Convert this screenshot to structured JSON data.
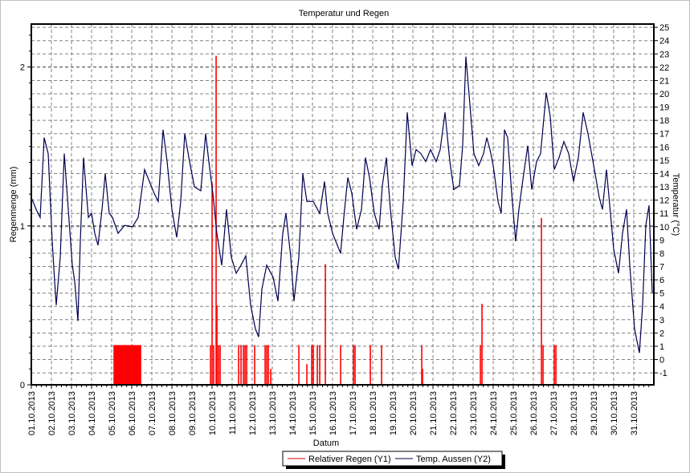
{
  "chart_data": {
    "type": "bar+line",
    "title": "Temperatur und Regen",
    "xlabel": "Datum",
    "ylabel": "Regenmenge (mm)",
    "y2label": "Temperatur (°C)",
    "x_tick_labels": [
      "01.10.2013",
      "02.10.2013",
      "03.10.2013",
      "04.10.2013",
      "05.10.2013",
      "06.10.2013",
      "07.10.2013",
      "08.10.2013",
      "09.10.2013",
      "10.10.2013",
      "11.10.2013",
      "12.10.2013",
      "13.10.2013",
      "14.10.2013",
      "15.10.2013",
      "16.10.2013",
      "17.10.2013",
      "18.10.2013",
      "19.10.2013",
      "20.10.2013",
      "21.10.2013",
      "22.10.2013",
      "23.10.2013",
      "24.10.2013",
      "25.10.2013",
      "26.10.2013",
      "27.10.2013",
      "28.10.2013",
      "29.10.2013",
      "30.10.2013",
      "31.10.2013"
    ],
    "xlim_days": [
      0,
      31
    ],
    "ylim": [
      0,
      2.27
    ],
    "y_ticks": [
      0,
      1,
      2
    ],
    "y2lim": [
      -1.9,
      25.25
    ],
    "y2_ticks": [
      -1,
      0,
      1,
      2,
      3,
      4,
      5,
      6,
      7,
      8,
      9,
      10,
      11,
      12,
      13,
      14,
      15,
      16,
      17,
      18,
      19,
      20,
      21,
      22,
      23,
      24,
      25
    ],
    "grid": true,
    "legend_position": "bottom-center",
    "series": [
      {
        "name": "Relativer Regen (Y1)",
        "axis": "y1",
        "kind": "bar",
        "color": "#ff0000",
        "points": [
          [
            4.12,
            0.25
          ],
          [
            4.16,
            0.25
          ],
          [
            4.2,
            0.25
          ],
          [
            4.24,
            0.25
          ],
          [
            4.28,
            0.25
          ],
          [
            4.32,
            0.25
          ],
          [
            4.36,
            0.25
          ],
          [
            4.4,
            0.25
          ],
          [
            4.44,
            0.25
          ],
          [
            4.48,
            0.25
          ],
          [
            4.52,
            0.25
          ],
          [
            4.56,
            0.25
          ],
          [
            4.6,
            0.25
          ],
          [
            4.64,
            0.25
          ],
          [
            4.68,
            0.25
          ],
          [
            4.72,
            0.25
          ],
          [
            4.76,
            0.25
          ],
          [
            4.8,
            0.25
          ],
          [
            4.84,
            0.25
          ],
          [
            4.88,
            0.25
          ],
          [
            4.92,
            0.25
          ],
          [
            4.96,
            0.25
          ],
          [
            5.0,
            0.25
          ],
          [
            5.04,
            0.25
          ],
          [
            5.08,
            0.25
          ],
          [
            5.12,
            0.25
          ],
          [
            5.16,
            0.25
          ],
          [
            5.2,
            0.25
          ],
          [
            5.24,
            0.25
          ],
          [
            5.28,
            0.25
          ],
          [
            5.32,
            0.25
          ],
          [
            5.36,
            0.25
          ],
          [
            5.4,
            0.25
          ],
          [
            5.44,
            0.25
          ],
          [
            8.92,
            0.25
          ],
          [
            9.0,
            1.27
          ],
          [
            9.08,
            0.25
          ],
          [
            9.2,
            2.07
          ],
          [
            9.24,
            0.5
          ],
          [
            9.32,
            0.25
          ],
          [
            9.4,
            0.25
          ],
          [
            10.32,
            0.25
          ],
          [
            10.44,
            0.25
          ],
          [
            10.56,
            0.25
          ],
          [
            10.64,
            0.25
          ],
          [
            10.72,
            0.25
          ],
          [
            11.12,
            0.25
          ],
          [
            11.64,
            0.25
          ],
          [
            11.72,
            0.25
          ],
          [
            11.8,
            0.25
          ],
          [
            11.92,
            0.1
          ],
          [
            13.32,
            0.25
          ],
          [
            13.72,
            0.13
          ],
          [
            13.96,
            0.25
          ],
          [
            14.04,
            0.25
          ],
          [
            14.24,
            0.25
          ],
          [
            14.36,
            0.25
          ],
          [
            14.64,
            0.76
          ],
          [
            15.4,
            0.25
          ],
          [
            16.04,
            0.25
          ],
          [
            16.12,
            0.25
          ],
          [
            16.88,
            0.25
          ],
          [
            17.44,
            0.25
          ],
          [
            19.44,
            0.25
          ],
          [
            19.48,
            0.1
          ],
          [
            22.36,
            0.25
          ],
          [
            22.44,
            0.51
          ],
          [
            25.4,
            1.05
          ],
          [
            25.48,
            0.25
          ],
          [
            26.04,
            0.25
          ],
          [
            26.12,
            0.25
          ]
        ]
      },
      {
        "name": "Temp. Aussen (Y2)",
        "axis": "y2",
        "kind": "line",
        "color": "#000050",
        "points": [
          [
            0,
            12.2
          ],
          [
            0.24,
            11.3
          ],
          [
            0.44,
            10.7
          ],
          [
            0.64,
            16.7
          ],
          [
            0.84,
            15.5
          ],
          [
            1.04,
            8.9
          ],
          [
            1.16,
            5.9
          ],
          [
            1.24,
            4.1
          ],
          [
            1.44,
            7.7
          ],
          [
            1.64,
            15.5
          ],
          [
            1.84,
            11.3
          ],
          [
            2.04,
            7.1
          ],
          [
            2.16,
            5.9
          ],
          [
            2.32,
            2.9
          ],
          [
            2.44,
            8.9
          ],
          [
            2.6,
            15.2
          ],
          [
            2.84,
            10.7
          ],
          [
            3.0,
            11.0
          ],
          [
            3.16,
            9.5
          ],
          [
            3.32,
            8.6
          ],
          [
            3.52,
            11.3
          ],
          [
            3.68,
            14.0
          ],
          [
            3.88,
            11.0
          ],
          [
            4.04,
            10.7
          ],
          [
            4.32,
            9.5
          ],
          [
            4.64,
            10.1
          ],
          [
            5.04,
            10.0
          ],
          [
            5.32,
            10.7
          ],
          [
            5.64,
            14.3
          ],
          [
            5.88,
            13.4
          ],
          [
            6.12,
            12.5
          ],
          [
            6.32,
            11.9
          ],
          [
            6.56,
            17.3
          ],
          [
            6.76,
            14.9
          ],
          [
            7.0,
            11.3
          ],
          [
            7.24,
            9.2
          ],
          [
            7.44,
            11.9
          ],
          [
            7.64,
            17.0
          ],
          [
            7.88,
            14.9
          ],
          [
            8.12,
            13.0
          ],
          [
            8.44,
            12.7
          ],
          [
            8.68,
            17.0
          ],
          [
            8.84,
            14.9
          ],
          [
            9.04,
            12.5
          ],
          [
            9.24,
            9.5
          ],
          [
            9.48,
            7.1
          ],
          [
            9.72,
            11.3
          ],
          [
            9.96,
            7.7
          ],
          [
            10.2,
            6.5
          ],
          [
            10.44,
            7.1
          ],
          [
            10.68,
            7.8
          ],
          [
            10.92,
            4.1
          ],
          [
            11.16,
            2.3
          ],
          [
            11.32,
            1.7
          ],
          [
            11.48,
            5.3
          ],
          [
            11.72,
            7.1
          ],
          [
            12.04,
            6.2
          ],
          [
            12.28,
            4.4
          ],
          [
            12.52,
            9.5
          ],
          [
            12.68,
            11.0
          ],
          [
            12.92,
            7.7
          ],
          [
            13.08,
            4.4
          ],
          [
            13.32,
            7.7
          ],
          [
            13.52,
            14.0
          ],
          [
            13.72,
            11.9
          ],
          [
            14.04,
            11.9
          ],
          [
            14.36,
            11.0
          ],
          [
            14.6,
            13.4
          ],
          [
            14.76,
            11.0
          ],
          [
            15.0,
            9.5
          ],
          [
            15.24,
            8.6
          ],
          [
            15.4,
            8.0
          ],
          [
            15.56,
            10.7
          ],
          [
            15.76,
            13.7
          ],
          [
            15.96,
            12.5
          ],
          [
            16.2,
            9.8
          ],
          [
            16.44,
            11.3
          ],
          [
            16.64,
            15.2
          ],
          [
            16.84,
            13.7
          ],
          [
            17.08,
            11.0
          ],
          [
            17.32,
            9.8
          ],
          [
            17.48,
            13.1
          ],
          [
            17.68,
            15.2
          ],
          [
            17.88,
            11.3
          ],
          [
            18.12,
            7.7
          ],
          [
            18.28,
            6.8
          ],
          [
            18.52,
            11.9
          ],
          [
            18.72,
            18.6
          ],
          [
            18.96,
            14.6
          ],
          [
            19.16,
            15.8
          ],
          [
            19.4,
            15.5
          ],
          [
            19.64,
            14.9
          ],
          [
            19.88,
            15.8
          ],
          [
            20.16,
            14.9
          ],
          [
            20.36,
            15.8
          ],
          [
            20.6,
            18.6
          ],
          [
            20.84,
            14.9
          ],
          [
            21.04,
            12.8
          ],
          [
            21.32,
            13.1
          ],
          [
            21.48,
            16.1
          ],
          [
            21.64,
            22.8
          ],
          [
            21.84,
            19.2
          ],
          [
            22.04,
            15.5
          ],
          [
            22.28,
            14.6
          ],
          [
            22.52,
            15.5
          ],
          [
            22.68,
            16.7
          ],
          [
            22.84,
            15.8
          ],
          [
            23.0,
            14.6
          ],
          [
            23.24,
            11.9
          ],
          [
            23.4,
            11.0
          ],
          [
            23.56,
            17.3
          ],
          [
            23.72,
            16.7
          ],
          [
            23.92,
            12.5
          ],
          [
            24.12,
            8.9
          ],
          [
            24.28,
            11.3
          ],
          [
            24.52,
            14.0
          ],
          [
            24.72,
            16.1
          ],
          [
            24.92,
            12.8
          ],
          [
            25.16,
            14.9
          ],
          [
            25.36,
            15.5
          ],
          [
            25.64,
            20.1
          ],
          [
            25.84,
            18.3
          ],
          [
            26.04,
            14.3
          ],
          [
            26.28,
            15.2
          ],
          [
            26.52,
            16.4
          ],
          [
            26.76,
            15.5
          ],
          [
            27.0,
            13.4
          ],
          [
            27.24,
            15.2
          ],
          [
            27.48,
            18.6
          ],
          [
            27.72,
            17.0
          ],
          [
            28.04,
            14.3
          ],
          [
            28.28,
            12.2
          ],
          [
            28.44,
            11.3
          ],
          [
            28.64,
            14.3
          ],
          [
            28.84,
            11.0
          ],
          [
            29.0,
            8.3
          ],
          [
            29.24,
            6.5
          ],
          [
            29.44,
            9.5
          ],
          [
            29.64,
            11.3
          ],
          [
            29.8,
            7.1
          ],
          [
            30.04,
            2.3
          ],
          [
            30.28,
            0.5
          ],
          [
            30.44,
            4.1
          ],
          [
            30.6,
            10.1
          ],
          [
            30.76,
            11.6
          ],
          [
            30.92,
            5.0
          ]
        ]
      }
    ]
  }
}
